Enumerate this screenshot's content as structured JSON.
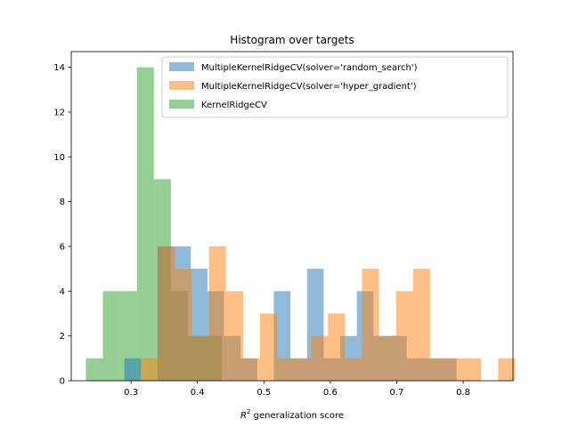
{
  "chart_data": {
    "type": "histogram",
    "title": "Histogram over targets",
    "xlabel_main": "R",
    "xlabel_sup": "2",
    "xlabel_rest": " generalization score",
    "ylabel": "",
    "xlim": [
      0.21,
      0.875
    ],
    "ylim": [
      0,
      14.7
    ],
    "xticks": [
      0.3,
      0.4,
      0.5,
      0.6,
      0.7,
      0.8
    ],
    "xtick_labels": [
      "0.3",
      "0.4",
      "0.5",
      "0.6",
      "0.7",
      "0.8"
    ],
    "yticks": [
      0,
      2,
      4,
      6,
      8,
      10,
      12,
      14
    ],
    "ytick_labels": [
      "0",
      "2",
      "4",
      "6",
      "8",
      "10",
      "12",
      "14"
    ],
    "legend_position": "top-right",
    "series": [
      {
        "name": "KernelRidgeCV",
        "color": "#2ca02c",
        "alpha": 0.5,
        "bin_start": 0.232,
        "bin_width": 0.0256,
        "counts": [
          1,
          4,
          4,
          14,
          9,
          4,
          2,
          2
        ]
      },
      {
        "name": "MultipleKernelRidgeCV(solver='random_search')",
        "color": "#1f77b4",
        "alpha": 0.5,
        "bin_start": 0.29,
        "bin_width": 0.025,
        "counts": [
          1,
          0,
          6,
          6,
          5,
          4,
          2,
          1,
          0,
          4,
          1,
          5,
          1,
          2,
          4,
          2,
          2,
          1,
          1,
          1
        ]
      },
      {
        "name": "MultipleKernelRidgeCV(solver='hyper_gradient')",
        "color": "#ff7f0e",
        "alpha": 0.5,
        "bin_start": 0.315,
        "bin_width": 0.0256,
        "counts": [
          1,
          6,
          5,
          2,
          6,
          4,
          1,
          3,
          1,
          1,
          2,
          3,
          1,
          5,
          2,
          4,
          5,
          1,
          1,
          1,
          0,
          1
        ]
      }
    ],
    "legend_order": [
      1,
      2,
      0
    ]
  }
}
